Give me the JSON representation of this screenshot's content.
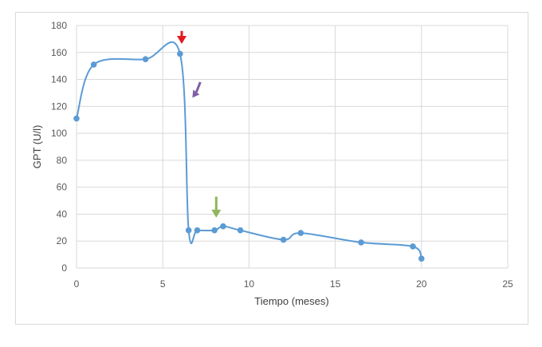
{
  "chart_data": {
    "type": "scatter",
    "title": "",
    "xlabel": "Tiempo (meses)",
    "ylabel": "GPT (U/l)",
    "xlim": [
      0,
      25
    ],
    "ylim": [
      0,
      180
    ],
    "xticks": [
      0,
      5,
      10,
      15,
      20,
      25
    ],
    "yticks": [
      0,
      20,
      40,
      60,
      80,
      100,
      120,
      140,
      160,
      180
    ],
    "grid": true,
    "legend": null,
    "series": [
      {
        "name": "GPT",
        "color": "#5b9bd5",
        "smooth": true,
        "x": [
          0,
          1,
          4,
          6,
          6.5,
          7,
          8,
          8.5,
          9.5,
          12,
          13,
          16.5,
          19.5,
          20
        ],
        "y": [
          111,
          151,
          155,
          159,
          28,
          28,
          28,
          31,
          28,
          21,
          26,
          19,
          16,
          7
        ]
      }
    ],
    "annotations": [
      {
        "type": "arrow",
        "color": "#e31a1c",
        "direction": "down",
        "x": 6.1,
        "y_top": 176,
        "y_tip": 167
      },
      {
        "type": "arrow",
        "color": "#7f5fa6",
        "direction": "down-left",
        "x": 6.9,
        "y_top": 138,
        "y_tip": 127
      },
      {
        "type": "arrow",
        "color": "#92b55b",
        "direction": "down",
        "x": 8.1,
        "y_top": 53,
        "y_tip": 38
      }
    ]
  }
}
